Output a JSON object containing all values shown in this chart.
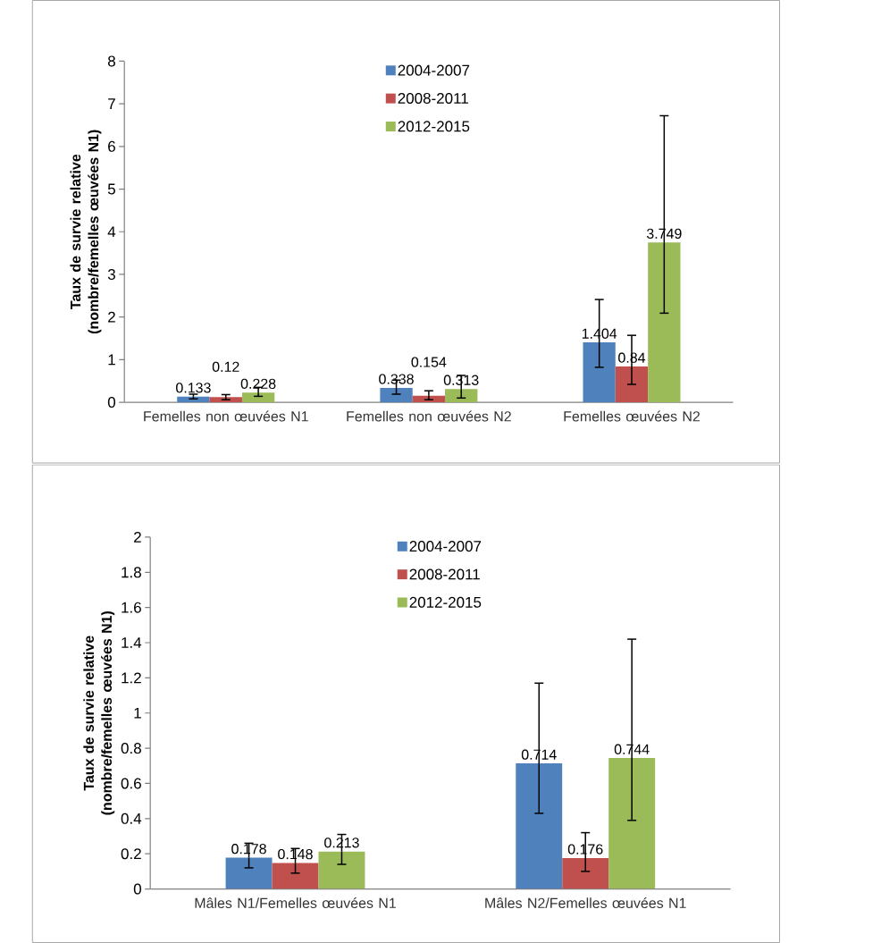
{
  "chart_data": [
    {
      "type": "bar",
      "ylabel": "Taux de survie relative (nombre/femelles œuvées N1)",
      "categories": [
        "Femelles non œuvées N1",
        "Femelles non œuvées N2",
        "Femelles œuvées N2"
      ],
      "series": [
        {
          "name": "2004-2007",
          "color": "#4f81bd",
          "values": [
            0.133,
            0.338,
            1.404
          ],
          "errors": [
            [
              0.08,
              0.19
            ],
            [
              0.19,
              0.52
            ],
            [
              0.82,
              2.41
            ]
          ]
        },
        {
          "name": "2008-2011",
          "color": "#c0504d",
          "values": [
            0.12,
            0.154,
            0.84
          ],
          "errors": [
            [
              0.06,
              0.18
            ],
            [
              0.06,
              0.27
            ],
            [
              0.42,
              1.57
            ]
          ]
        },
        {
          "name": "2012-2015",
          "color": "#9bbb59",
          "values": [
            0.228,
            0.313,
            3.749
          ],
          "errors": [
            [
              0.14,
              0.35
            ],
            [
              0.1,
              0.63
            ],
            [
              2.09,
              6.72
            ]
          ]
        }
      ],
      "ylim": [
        0,
        8
      ],
      "yticks": [
        0,
        1,
        2,
        3,
        4,
        5,
        6,
        7,
        8
      ],
      "data_labels": true,
      "legend": "top",
      "grid": false
    },
    {
      "type": "bar",
      "ylabel": "Taux de survie relative (nombre/femelles œuvées N1)",
      "categories": [
        "Mâles N1/Femelles œuvées N1",
        "Mâles N2/Femelles œuvées N1"
      ],
      "series": [
        {
          "name": "2004-2007",
          "color": "#4f81bd",
          "values": [
            0.178,
            0.714
          ],
          "errors": [
            [
              0.12,
              0.26
            ],
            [
              0.43,
              1.17
            ]
          ]
        },
        {
          "name": "2008-2011",
          "color": "#c0504d",
          "values": [
            0.148,
            0.176
          ],
          "errors": [
            [
              0.09,
              0.23
            ],
            [
              0.1,
              0.32
            ]
          ]
        },
        {
          "name": "2012-2015",
          "color": "#9bbb59",
          "values": [
            0.213,
            0.744
          ],
          "errors": [
            [
              0.14,
              0.31
            ],
            [
              0.39,
              1.42
            ]
          ]
        }
      ],
      "ylim": [
        0,
        2
      ],
      "yticks": [
        0,
        0.2,
        0.4,
        0.6,
        0.8,
        1,
        1.2,
        1.4,
        1.6,
        1.8,
        2
      ],
      "data_labels": true,
      "legend": "top",
      "grid": false
    }
  ]
}
